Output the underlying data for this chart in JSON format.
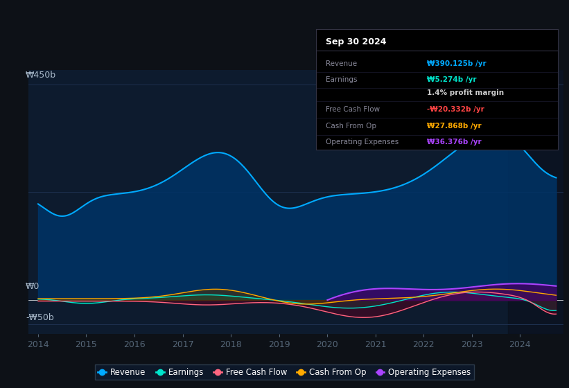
{
  "background_color": "#0d1117",
  "plot_bg_color": "#0d1b2e",
  "grid_color": "#1e3050",
  "title": "Sep 30 2024",
  "ylabel_top": "₩450b",
  "ylabel_zero": "₩0",
  "ylabel_neg": "-₩50b",
  "x_labels": [
    "2014",
    "2015",
    "2016",
    "2017",
    "2018",
    "2019",
    "2020",
    "2021",
    "2022",
    "2023",
    "2024"
  ],
  "ylim": [
    -70,
    480
  ],
  "legend": [
    {
      "label": "Revenue",
      "color": "#00aaff"
    },
    {
      "label": "Earnings",
      "color": "#00e5cc"
    },
    {
      "label": "Free Cash Flow",
      "color": "#ff6680"
    },
    {
      "label": "Cash From Op",
      "color": "#ffaa00"
    },
    {
      "label": "Operating Expenses",
      "color": "#aa44ff"
    }
  ],
  "tooltip": {
    "date": "Sep 30 2024",
    "revenue": {
      "value": "₩390.125b",
      "color": "#00aaff"
    },
    "earnings": {
      "value": "₩5.274b",
      "color": "#00e5cc"
    },
    "profit_margin": "1.4%",
    "free_cash_flow": {
      "value": "-₩20.332b",
      "color": "#ff4444"
    },
    "cash_from_op": {
      "value": "₩27.868b",
      "color": "#ffaa00"
    },
    "operating_expenses": {
      "value": "₩36.376b",
      "color": "#aa44ff"
    }
  }
}
